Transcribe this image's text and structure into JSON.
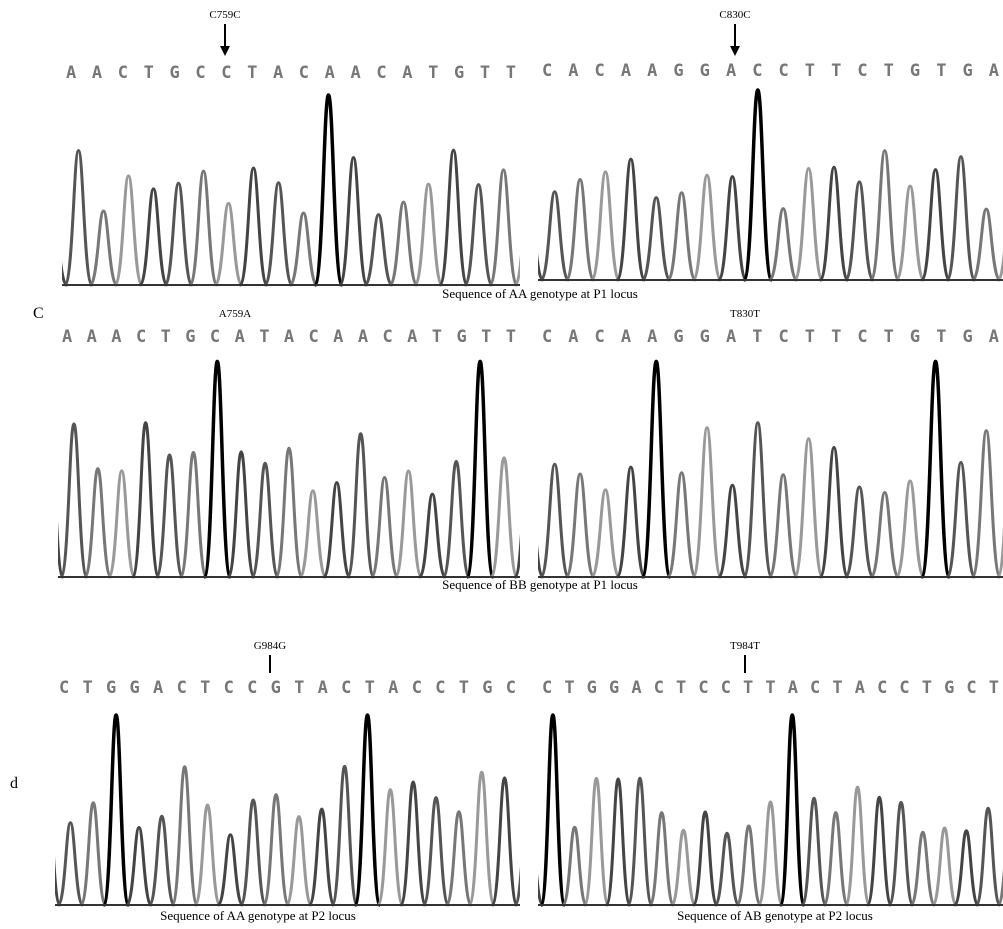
{
  "panels": [
    {
      "mutation": "C759C",
      "sequence": "AACTGCCTACAACATGTT"
    },
    {
      "mutation": "C830C",
      "sequence": "CACAAGGACCTTCTGTGA"
    },
    {
      "mutation": "A759A",
      "sequence": "AAACTGCATACAACATGTT"
    },
    {
      "mutation": "T830T",
      "sequence": "CACAAGGATCTTCTGTGA"
    },
    {
      "mutation": "G984G",
      "sequence": "CTGGACTCCGTACTACCTGC"
    },
    {
      "mutation": "T984T",
      "sequence": "CTGGACTCCTTACTACCTGCT"
    }
  ],
  "captions": [
    "Sequence of AA genotype at P1 locus",
    "Sequence of BB genotype at P1 locus",
    "Sequence of AA genotype at P2 locus",
    "Sequence of AB genotype at P2 locus"
  ],
  "letters": [
    "C",
    "d"
  ]
}
